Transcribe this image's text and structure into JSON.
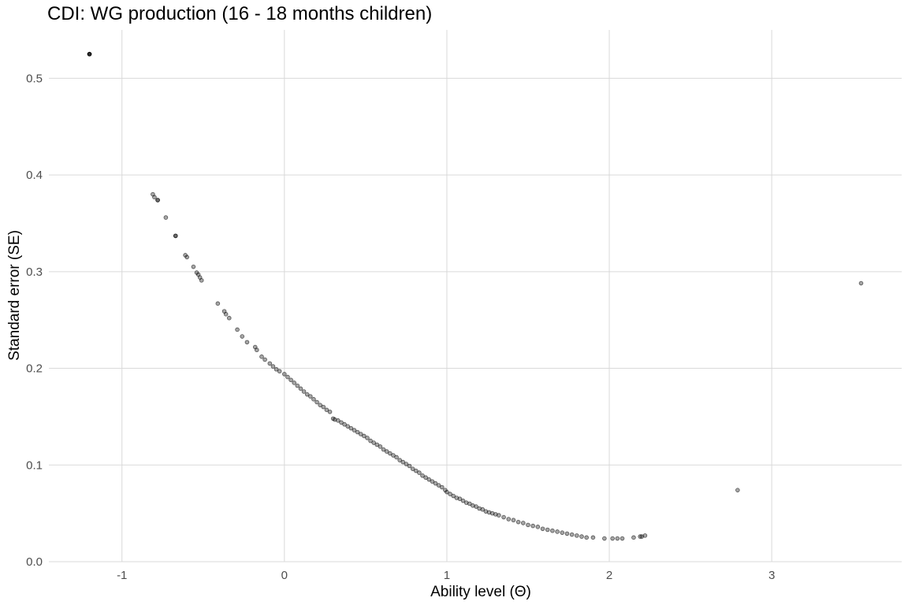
{
  "chart_data": {
    "type": "scatter",
    "title": "CDI: WG production (16 - 18 months children)",
    "xlabel": "Ability level (Θ)",
    "ylabel": "Standard error (SE)",
    "xlim": [
      -1.45,
      3.8
    ],
    "ylim": [
      0.0,
      0.55
    ],
    "x_ticks": [
      -1,
      0,
      1,
      2,
      3
    ],
    "x_tick_labels": [
      "-1",
      "0",
      "1",
      "2",
      "3"
    ],
    "y_ticks": [
      0.0,
      0.1,
      0.2,
      0.3,
      0.4,
      0.5
    ],
    "y_tick_labels": [
      "0.0",
      "0.1",
      "0.2",
      "0.3",
      "0.4",
      "0.5"
    ],
    "grid": true,
    "point_color": "#000000",
    "gridline_color": "#d9d9d9",
    "points": [
      [
        -1.2,
        0.525
      ],
      [
        -1.2,
        0.525
      ],
      [
        -1.2,
        0.525
      ],
      [
        -1.2,
        0.525
      ],
      [
        -0.81,
        0.38
      ],
      [
        -0.8,
        0.377
      ],
      [
        -0.78,
        0.374
      ],
      [
        -0.78,
        0.374
      ],
      [
        -0.73,
        0.356
      ],
      [
        -0.67,
        0.337
      ],
      [
        -0.67,
        0.337
      ],
      [
        -0.61,
        0.317
      ],
      [
        -0.6,
        0.315
      ],
      [
        -0.56,
        0.305
      ],
      [
        -0.54,
        0.299
      ],
      [
        -0.53,
        0.297
      ],
      [
        -0.52,
        0.294
      ],
      [
        -0.51,
        0.291
      ],
      [
        -0.41,
        0.267
      ],
      [
        -0.37,
        0.259
      ],
      [
        -0.36,
        0.256
      ],
      [
        -0.34,
        0.252
      ],
      [
        -0.29,
        0.24
      ],
      [
        -0.26,
        0.233
      ],
      [
        -0.23,
        0.227
      ],
      [
        -0.18,
        0.222
      ],
      [
        -0.17,
        0.219
      ],
      [
        -0.14,
        0.212
      ],
      [
        -0.12,
        0.209
      ],
      [
        -0.09,
        0.205
      ],
      [
        -0.07,
        0.202
      ],
      [
        -0.05,
        0.199
      ],
      [
        -0.03,
        0.197
      ],
      [
        0.0,
        0.194
      ],
      [
        0.02,
        0.191
      ],
      [
        0.04,
        0.188
      ],
      [
        0.06,
        0.185
      ],
      [
        0.08,
        0.182
      ],
      [
        0.1,
        0.179
      ],
      [
        0.12,
        0.176
      ],
      [
        0.14,
        0.173
      ],
      [
        0.16,
        0.171
      ],
      [
        0.18,
        0.168
      ],
      [
        0.2,
        0.165
      ],
      [
        0.22,
        0.162
      ],
      [
        0.24,
        0.16
      ],
      [
        0.26,
        0.157
      ],
      [
        0.28,
        0.155
      ],
      [
        0.3,
        0.148
      ],
      [
        0.31,
        0.147
      ],
      [
        0.33,
        0.146
      ],
      [
        0.35,
        0.144
      ],
      [
        0.37,
        0.142
      ],
      [
        0.39,
        0.14
      ],
      [
        0.41,
        0.138
      ],
      [
        0.43,
        0.136
      ],
      [
        0.45,
        0.134
      ],
      [
        0.47,
        0.132
      ],
      [
        0.49,
        0.13
      ],
      [
        0.51,
        0.128
      ],
      [
        0.53,
        0.125
      ],
      [
        0.55,
        0.123
      ],
      [
        0.57,
        0.121
      ],
      [
        0.59,
        0.119
      ],
      [
        0.61,
        0.116
      ],
      [
        0.63,
        0.114
      ],
      [
        0.65,
        0.112
      ],
      [
        0.67,
        0.11
      ],
      [
        0.69,
        0.108
      ],
      [
        0.71,
        0.105
      ],
      [
        0.73,
        0.103
      ],
      [
        0.75,
        0.101
      ],
      [
        0.77,
        0.099
      ],
      [
        0.79,
        0.096
      ],
      [
        0.81,
        0.094
      ],
      [
        0.83,
        0.092
      ],
      [
        0.85,
        0.089
      ],
      [
        0.87,
        0.087
      ],
      [
        0.89,
        0.085
      ],
      [
        0.91,
        0.083
      ],
      [
        0.93,
        0.081
      ],
      [
        0.95,
        0.079
      ],
      [
        0.97,
        0.077
      ],
      [
        0.99,
        0.074
      ],
      [
        1.0,
        0.072
      ],
      [
        1.02,
        0.07
      ],
      [
        1.04,
        0.068
      ],
      [
        1.06,
        0.066
      ],
      [
        1.08,
        0.065
      ],
      [
        1.1,
        0.063
      ],
      [
        1.12,
        0.061
      ],
      [
        1.14,
        0.06
      ],
      [
        1.16,
        0.058
      ],
      [
        1.18,
        0.057
      ],
      [
        1.2,
        0.055
      ],
      [
        1.22,
        0.054
      ],
      [
        1.24,
        0.052
      ],
      [
        1.26,
        0.051
      ],
      [
        1.28,
        0.05
      ],
      [
        1.3,
        0.049
      ],
      [
        1.32,
        0.048
      ],
      [
        1.35,
        0.046
      ],
      [
        1.38,
        0.044
      ],
      [
        1.41,
        0.043
      ],
      [
        1.44,
        0.041
      ],
      [
        1.47,
        0.04
      ],
      [
        1.5,
        0.038
      ],
      [
        1.53,
        0.037
      ],
      [
        1.56,
        0.036
      ],
      [
        1.59,
        0.034
      ],
      [
        1.62,
        0.033
      ],
      [
        1.65,
        0.032
      ],
      [
        1.68,
        0.031
      ],
      [
        1.71,
        0.03
      ],
      [
        1.74,
        0.029
      ],
      [
        1.77,
        0.028
      ],
      [
        1.8,
        0.027
      ],
      [
        1.83,
        0.026
      ],
      [
        1.86,
        0.025
      ],
      [
        1.9,
        0.025
      ],
      [
        1.97,
        0.024
      ],
      [
        2.02,
        0.024
      ],
      [
        2.05,
        0.024
      ],
      [
        2.08,
        0.024
      ],
      [
        2.15,
        0.025
      ],
      [
        2.19,
        0.026
      ],
      [
        2.2,
        0.026
      ],
      [
        2.22,
        0.027
      ],
      [
        2.79,
        0.074
      ],
      [
        3.55,
        0.288
      ]
    ]
  }
}
